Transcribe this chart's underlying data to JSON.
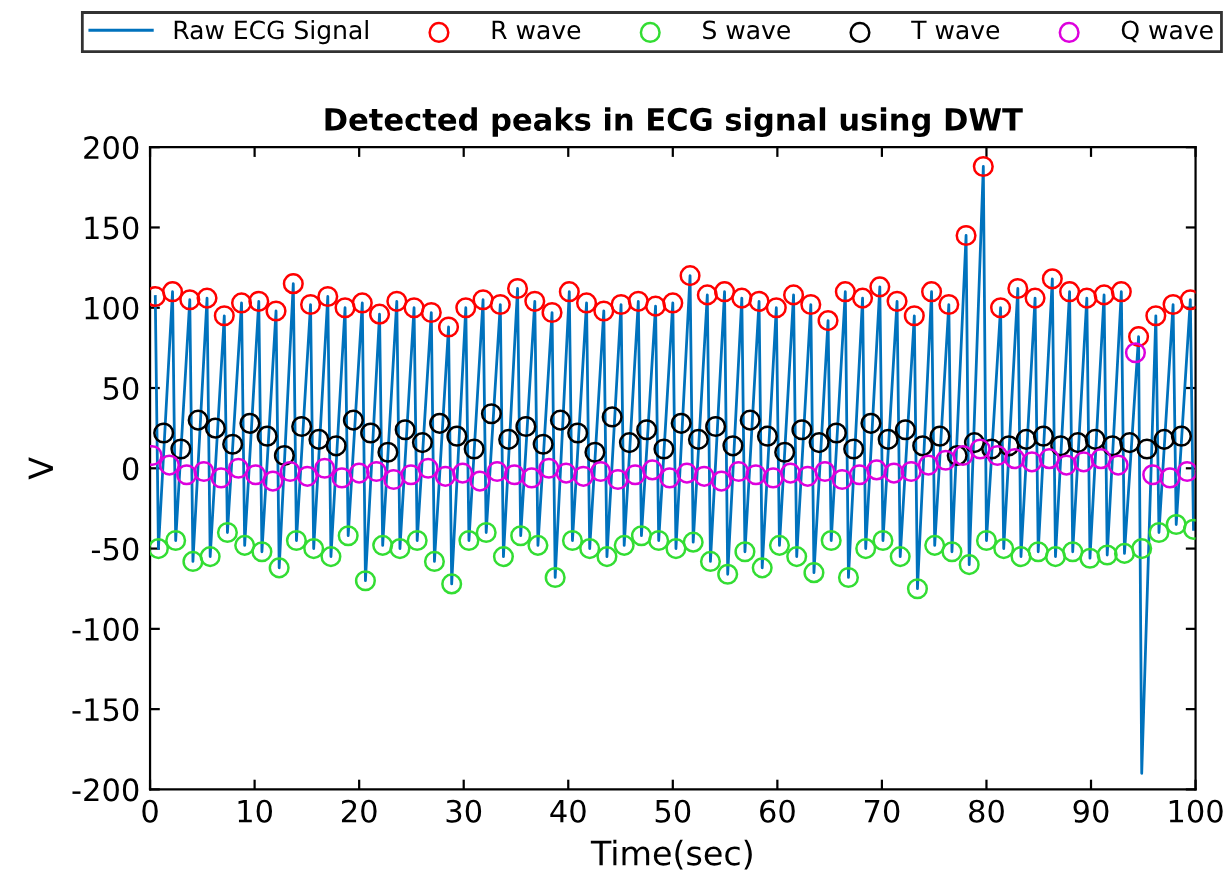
{
  "chart_data": {
    "type": "line",
    "title": "Detected peaks in ECG signal using DWT",
    "xlabel": "Time(sec)",
    "ylabel": "V",
    "xlim": [
      0,
      100
    ],
    "ylim": [
      -200,
      200
    ],
    "xticks": [
      0,
      10,
      20,
      30,
      40,
      50,
      60,
      70,
      80,
      90,
      100
    ],
    "yticks": [
      -200,
      -150,
      -100,
      -50,
      0,
      50,
      100,
      150,
      200
    ],
    "grid": false,
    "legend": "top",
    "series": [
      {
        "name": "Raw ECG Signal",
        "marker": "none",
        "color": "#0072bd",
        "x": [
          0.5,
          0.8,
          2.15,
          2.45,
          3.8,
          4.1,
          5.45,
          5.75,
          7.1,
          7.4,
          8.75,
          9.05,
          10.4,
          10.7,
          12.05,
          12.35,
          13.7,
          14.0,
          15.35,
          15.65,
          17.0,
          17.3,
          18.65,
          18.95,
          20.3,
          20.6,
          21.95,
          22.25,
          23.6,
          23.9,
          25.25,
          25.55,
          26.9,
          27.2,
          28.55,
          28.85,
          30.2,
          30.5,
          31.85,
          32.15,
          33.5,
          33.8,
          35.15,
          35.45,
          36.8,
          37.1,
          38.45,
          38.75,
          40.1,
          40.4,
          41.75,
          42.05,
          43.4,
          43.7,
          45.05,
          45.35,
          46.7,
          47.0,
          48.35,
          48.65,
          50.0,
          50.3,
          51.65,
          51.95,
          53.3,
          53.6,
          54.95,
          55.25,
          56.6,
          56.9,
          58.25,
          58.55,
          59.9,
          60.2,
          61.55,
          61.85,
          63.2,
          63.5,
          64.85,
          65.15,
          66.5,
          66.8,
          68.15,
          68.45,
          69.8,
          70.1,
          71.45,
          71.75,
          73.1,
          73.4,
          74.75,
          75.05,
          76.4,
          76.7,
          78.05,
          78.35,
          79.7,
          80.0,
          81.35,
          81.65,
          83.0,
          83.3,
          84.65,
          84.95,
          86.3,
          86.6,
          87.95,
          88.25,
          89.6,
          89.9,
          91.25,
          91.55,
          92.9,
          93.2,
          94.55,
          94.85,
          96.2,
          96.5,
          97.85,
          98.15,
          99.5,
          99.8
        ],
        "values": [
          107,
          -50,
          110,
          -45,
          105,
          -58,
          106,
          -55,
          95,
          -40,
          103,
          -48,
          104,
          -52,
          98,
          -62,
          115,
          -45,
          102,
          -50,
          107,
          -55,
          100,
          -42,
          103,
          -70,
          96,
          -48,
          104,
          -50,
          100,
          -45,
          97,
          -58,
          88,
          -72,
          100,
          -45,
          105,
          -40,
          102,
          -55,
          112,
          -42,
          104,
          -48,
          97,
          -68,
          110,
          -45,
          103,
          -50,
          98,
          -55,
          102,
          -48,
          104,
          -42,
          101,
          -45,
          103,
          -50,
          120,
          -46,
          108,
          -58,
          110,
          -66,
          106,
          -52,
          104,
          -62,
          100,
          -48,
          108,
          -55,
          102,
          -65,
          92,
          -45,
          110,
          -68,
          106,
          -50,
          113,
          -45,
          104,
          -55,
          95,
          -75,
          110,
          -48,
          102,
          -52,
          145,
          -60,
          188,
          -45,
          100,
          -50,
          112,
          -55,
          106,
          -52,
          118,
          -55,
          110,
          -52,
          106,
          -56,
          108,
          -54,
          110,
          -53,
          82,
          -190,
          95,
          -40,
          102,
          -35,
          105,
          -38
        ]
      },
      {
        "name": "R wave",
        "type": "scatter",
        "marker": "circle",
        "color": "#ff0000",
        "x": [
          0.5,
          2.15,
          3.8,
          5.45,
          7.1,
          8.75,
          10.4,
          12.05,
          13.7,
          15.35,
          17.0,
          18.65,
          20.3,
          21.95,
          23.6,
          25.25,
          26.9,
          28.55,
          30.2,
          31.85,
          33.5,
          35.15,
          36.8,
          38.45,
          40.1,
          41.75,
          43.4,
          45.05,
          46.7,
          48.35,
          50.0,
          51.65,
          53.3,
          54.95,
          56.6,
          58.25,
          59.9,
          61.55,
          63.2,
          64.85,
          66.5,
          68.15,
          69.8,
          71.45,
          73.1,
          74.75,
          76.4,
          78.05,
          79.7,
          81.35,
          83.0,
          84.65,
          86.3,
          87.95,
          89.6,
          91.25,
          92.9,
          94.55,
          96.2,
          97.85,
          99.5
        ],
        "values": [
          107,
          110,
          105,
          106,
          95,
          103,
          104,
          98,
          115,
          102,
          107,
          100,
          103,
          96,
          104,
          100,
          97,
          88,
          100,
          105,
          102,
          112,
          104,
          97,
          110,
          103,
          98,
          102,
          104,
          101,
          103,
          120,
          108,
          110,
          106,
          104,
          100,
          108,
          102,
          92,
          110,
          106,
          113,
          104,
          95,
          110,
          102,
          145,
          188,
          100,
          112,
          106,
          118,
          110,
          106,
          108,
          110,
          82,
          95,
          102,
          105
        ]
      },
      {
        "name": "S wave",
        "type": "scatter",
        "marker": "circle",
        "color": "#33dd33",
        "x": [
          0.8,
          2.45,
          4.1,
          5.75,
          7.4,
          9.05,
          10.7,
          12.35,
          14.0,
          15.65,
          17.3,
          18.95,
          20.6,
          22.25,
          23.9,
          25.55,
          27.2,
          28.85,
          30.5,
          32.15,
          33.8,
          35.45,
          37.1,
          38.75,
          40.4,
          42.05,
          43.7,
          45.35,
          47.0,
          48.65,
          50.3,
          51.95,
          53.6,
          55.25,
          56.9,
          58.55,
          60.2,
          61.85,
          63.5,
          65.15,
          66.8,
          68.45,
          70.1,
          71.75,
          73.4,
          75.05,
          76.7,
          78.35,
          80.0,
          81.65,
          83.3,
          84.95,
          86.6,
          88.25,
          89.9,
          91.55,
          93.2,
          94.85,
          96.5,
          98.15,
          99.8
        ],
        "values": [
          -50,
          -45,
          -58,
          -55,
          -40,
          -48,
          -52,
          -62,
          -45,
          -50,
          -55,
          -42,
          -70,
          -48,
          -50,
          -45,
          -58,
          -72,
          -45,
          -40,
          -55,
          -42,
          -48,
          -68,
          -45,
          -50,
          -55,
          -48,
          -42,
          -45,
          -50,
          -46,
          -58,
          -66,
          -52,
          -62,
          -48,
          -55,
          -65,
          -45,
          -68,
          -50,
          -45,
          -55,
          -75,
          -48,
          -52,
          -60,
          -45,
          -50,
          -55,
          -52,
          -55,
          -52,
          -56,
          -54,
          -53,
          -50,
          -40,
          -35,
          -38
        ]
      },
      {
        "name": "T wave",
        "type": "scatter",
        "marker": "circle",
        "color": "#000000",
        "x": [
          1.3,
          2.95,
          4.6,
          6.25,
          7.9,
          9.55,
          11.2,
          12.85,
          14.5,
          16.15,
          17.8,
          19.45,
          21.1,
          22.75,
          24.4,
          26.05,
          27.7,
          29.35,
          31.0,
          32.65,
          34.3,
          35.95,
          37.6,
          39.25,
          40.9,
          42.55,
          44.2,
          45.85,
          47.5,
          49.15,
          50.8,
          52.45,
          54.1,
          55.75,
          57.4,
          59.05,
          60.7,
          62.35,
          64.0,
          65.65,
          67.3,
          68.95,
          70.6,
          72.25,
          73.9,
          75.55,
          77.2,
          78.85,
          80.5,
          82.15,
          83.8,
          85.45,
          87.1,
          88.75,
          90.4,
          92.05,
          93.7,
          95.35,
          97.0,
          98.65
        ],
        "values": [
          22,
          12,
          30,
          25,
          15,
          28,
          20,
          8,
          26,
          18,
          14,
          30,
          22,
          10,
          24,
          16,
          28,
          20,
          12,
          34,
          18,
          26,
          15,
          30,
          22,
          10,
          32,
          16,
          24,
          12,
          28,
          18,
          26,
          14,
          30,
          20,
          10,
          24,
          16,
          22,
          12,
          28,
          18,
          24,
          14,
          20,
          8,
          16,
          12,
          14,
          18,
          20,
          14,
          16,
          18,
          14,
          16,
          12,
          18,
          20
        ]
      },
      {
        "name": "Q wave",
        "type": "scatter",
        "marker": "circle",
        "color": "#dd00dd",
        "x": [
          0.2,
          1.85,
          3.5,
          5.15,
          6.8,
          8.45,
          10.1,
          11.75,
          13.4,
          15.05,
          16.7,
          18.35,
          20.0,
          21.65,
          23.3,
          24.95,
          26.6,
          28.25,
          29.9,
          31.55,
          33.2,
          34.85,
          36.5,
          38.15,
          39.8,
          41.45,
          43.1,
          44.75,
          46.4,
          48.05,
          49.7,
          51.35,
          53.0,
          54.65,
          56.3,
          57.95,
          59.6,
          61.25,
          62.9,
          64.55,
          66.2,
          67.85,
          69.5,
          71.15,
          72.8,
          74.45,
          76.1,
          77.75,
          79.4,
          81.05,
          82.7,
          84.35,
          86.0,
          87.65,
          89.3,
          90.95,
          92.6,
          94.25,
          95.9,
          97.55,
          99.2
        ],
        "values": [
          8,
          2,
          -4,
          -2,
          -6,
          0,
          -4,
          -8,
          -2,
          -5,
          0,
          -6,
          -3,
          -2,
          -7,
          -4,
          0,
          -5,
          -3,
          -8,
          -2,
          -4,
          -6,
          0,
          -3,
          -5,
          -2,
          -7,
          -4,
          -1,
          -6,
          -3,
          -5,
          -8,
          -2,
          -4,
          -6,
          -3,
          -5,
          -2,
          -7,
          -4,
          -1,
          -3,
          -2,
          2,
          5,
          8,
          12,
          8,
          6,
          4,
          6,
          2,
          4,
          6,
          2,
          72,
          -4,
          -6,
          -2
        ]
      }
    ]
  }
}
